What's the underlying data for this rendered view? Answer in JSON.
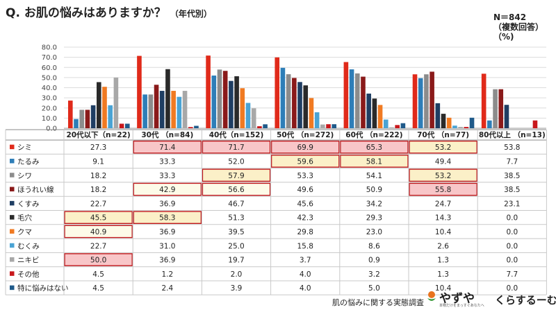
{
  "header": {
    "title": "Q. お肌の悩みはありますか？",
    "subtitle": "（年代別）",
    "n_line1": "N＝842",
    "n_line2": "（複数回答）",
    "n_line3": "（%)"
  },
  "footer": {
    "survey_label": "肌の悩みに関する実態調査",
    "brand1": "やずや",
    "brand1_tagline": "本物だけをまっすぐあなたへ",
    "brand2": "くらするーむ"
  },
  "chart_data": {
    "type": "bar",
    "categories": [
      "20代以下（n=22)",
      "30代 （n=84)",
      "40代（n=152)",
      "50代 （n=272)",
      "60代 （n=222)",
      "70代 （n=77)",
      "80代以上 （n=13)"
    ],
    "ylim": [
      0,
      80
    ],
    "yticks": [
      "0.0",
      "10.0",
      "20.0",
      "30.0",
      "40.0",
      "50.0",
      "60.0",
      "70.0",
      "80.0"
    ],
    "series": [
      {
        "name": "シミ",
        "color": "#e02a1a",
        "values": [
          "27.3",
          "71.4",
          "71.7",
          "69.9",
          "65.3",
          "53.2",
          "53.8"
        ]
      },
      {
        "name": "たるみ",
        "color": "#2e7eb8",
        "values": [
          "9.1",
          "33.3",
          "52.0",
          "59.6",
          "58.1",
          "49.4",
          "7.7"
        ]
      },
      {
        "name": "シワ",
        "color": "#8c8c8c",
        "values": [
          "18.2",
          "33.3",
          "57.9",
          "53.3",
          "54.1",
          "53.2",
          "38.5"
        ]
      },
      {
        "name": "ほうれい線",
        "color": "#8a1a1a",
        "values": [
          "18.2",
          "42.9",
          "56.6",
          "49.6",
          "50.9",
          "55.8",
          "38.5"
        ]
      },
      {
        "name": "くすみ",
        "color": "#1f3e63",
        "values": [
          "22.7",
          "36.9",
          "46.7",
          "45.6",
          "34.2",
          "24.7",
          "23.1"
        ]
      },
      {
        "name": "毛穴",
        "color": "#2a2a2a",
        "values": [
          "45.5",
          "58.3",
          "51.3",
          "42.3",
          "29.3",
          "14.3",
          "0.0"
        ]
      },
      {
        "name": "クマ",
        "color": "#f07a22",
        "values": [
          "40.9",
          "36.9",
          "39.5",
          "29.8",
          "23.0",
          "10.4",
          "0.0"
        ]
      },
      {
        "name": "むくみ",
        "color": "#4aa3d4",
        "values": [
          "22.7",
          "31.0",
          "25.0",
          "15.8",
          "8.6",
          "2.6",
          "0.0"
        ]
      },
      {
        "name": "ニキビ",
        "color": "#a8a8a8",
        "values": [
          "50.0",
          "36.9",
          "19.7",
          "3.7",
          "0.9",
          "1.3",
          "0.0"
        ]
      },
      {
        "name": "その他",
        "color": "#c8181c",
        "values": [
          "4.5",
          "1.2",
          "2.0",
          "4.0",
          "3.2",
          "1.3",
          "7.7"
        ]
      },
      {
        "name": "特に悩みはない",
        "color": "#1f5a8a",
        "values": [
          "4.5",
          "2.4",
          "3.9",
          "4.0",
          "5.0",
          "10.4",
          "0.0"
        ]
      }
    ],
    "highlight_colors": {
      "high": "#f8c6c8",
      "medium": "#fbf0c8",
      "low": "#fdfbe8",
      "border": "#c0181c"
    },
    "highlights": [
      {
        "row": 0,
        "col": 1,
        "level": "high"
      },
      {
        "row": 0,
        "col": 2,
        "level": "high"
      },
      {
        "row": 0,
        "col": 3,
        "level": "high"
      },
      {
        "row": 0,
        "col": 4,
        "level": "high"
      },
      {
        "row": 0,
        "col": 5,
        "level": "medium"
      },
      {
        "row": 1,
        "col": 3,
        "level": "medium"
      },
      {
        "row": 1,
        "col": 4,
        "level": "medium"
      },
      {
        "row": 2,
        "col": 2,
        "level": "medium"
      },
      {
        "row": 2,
        "col": 5,
        "level": "medium"
      },
      {
        "row": 3,
        "col": 1,
        "level": "low"
      },
      {
        "row": 3,
        "col": 2,
        "level": "low"
      },
      {
        "row": 3,
        "col": 5,
        "level": "high"
      },
      {
        "row": 5,
        "col": 0,
        "level": "medium"
      },
      {
        "row": 5,
        "col": 1,
        "level": "medium"
      },
      {
        "row": 6,
        "col": 0,
        "level": "low"
      },
      {
        "row": 8,
        "col": 0,
        "level": "high"
      }
    ],
    "grid": true,
    "legend": "table-left"
  }
}
